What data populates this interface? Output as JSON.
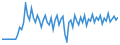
{
  "chart_data": {
    "type": "line",
    "color": "#3a8fd6",
    "grid": false,
    "tick_labels": false,
    "x": [
      1,
      2,
      3,
      4,
      5,
      6,
      7,
      8,
      9,
      10,
      11,
      12,
      13,
      14,
      15,
      16,
      17,
      18,
      19,
      20,
      21,
      22,
      23,
      24,
      25,
      26,
      27,
      28,
      29,
      30,
      31,
      32,
      33,
      34,
      35,
      36,
      37,
      38,
      39,
      40,
      41,
      42,
      43,
      44,
      45,
      46,
      47,
      48,
      49,
      50,
      51,
      52,
      53,
      54,
      55,
      56,
      57,
      58,
      59,
      60
    ],
    "values": [
      20,
      20,
      20,
      20,
      20,
      20,
      20,
      20,
      30,
      45,
      40,
      55,
      95,
      70,
      60,
      85,
      65,
      55,
      70,
      60,
      45,
      60,
      70,
      55,
      50,
      65,
      40,
      60,
      70,
      50,
      62,
      68,
      30,
      15,
      55,
      60,
      45,
      70,
      58,
      50,
      66,
      55,
      70,
      48,
      62,
      58,
      72,
      55,
      66,
      60,
      70,
      52,
      64,
      58,
      74,
      56,
      62,
      68,
      60,
      66
    ],
    "xlim": [
      1,
      60
    ],
    "ylim": [
      12,
      98
    ]
  }
}
